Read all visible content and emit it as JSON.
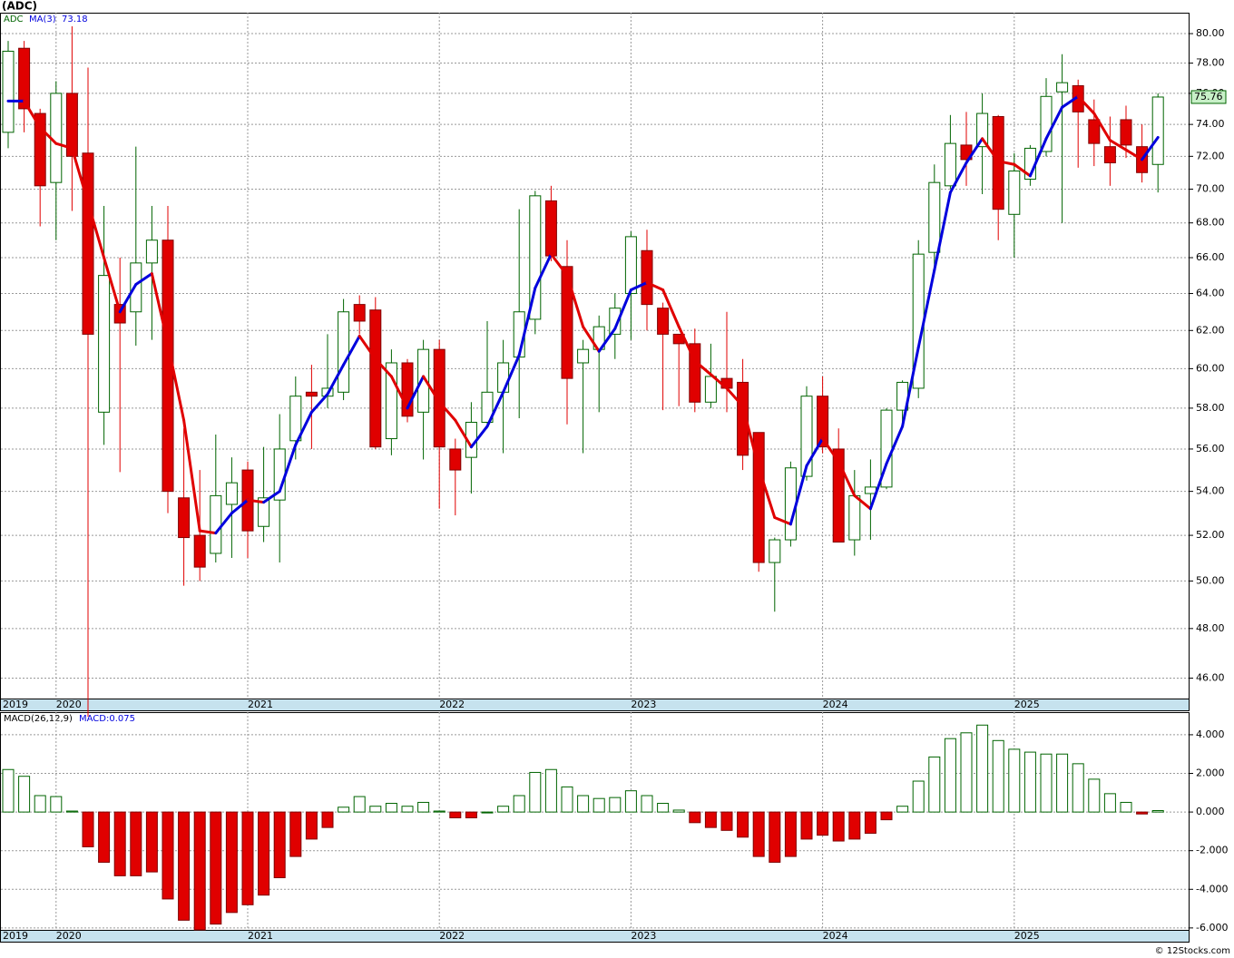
{
  "chart_data": [
    {
      "type": "candlestick",
      "title": "(ADC)",
      "symbol": "ADC",
      "ma_label": "MA(3)",
      "log_scale": true,
      "grid": true,
      "categories": [
        "2019",
        null,
        null,
        "2020",
        null,
        null,
        null,
        null,
        null,
        null,
        null,
        null,
        null,
        null,
        null,
        "2021",
        null,
        null,
        null,
        null,
        null,
        null,
        null,
        null,
        null,
        null,
        null,
        "2022",
        null,
        null,
        null,
        null,
        null,
        null,
        null,
        null,
        null,
        null,
        null,
        "2023",
        null,
        null,
        null,
        null,
        null,
        null,
        null,
        null,
        null,
        null,
        null,
        "2024",
        null,
        null,
        null,
        null,
        null,
        null,
        null,
        null,
        null,
        null,
        null,
        "2025",
        null,
        null,
        null,
        null,
        null,
        null,
        null,
        null,
        null
      ],
      "open": [
        73.5,
        79,
        74.7,
        70.4,
        76,
        72.2,
        57.8,
        63.4,
        63,
        65.7,
        67,
        53.7,
        52,
        51.2,
        53.4,
        55,
        52.4,
        53.6,
        56.4,
        58.8,
        58.6,
        58.8,
        63.4,
        63.1,
        56.5,
        60.3,
        57.8,
        61,
        56,
        55.6,
        57.3,
        58.8,
        60.6,
        62.6,
        69.3,
        65.5,
        60.3,
        61,
        61.8,
        64,
        66.4,
        63.2,
        61.8,
        61.3,
        58.3,
        59.5,
        59.3,
        56.8,
        50.8,
        51.8,
        54.7,
        58.6,
        56,
        51.8,
        53.9,
        54.2,
        57.9,
        59,
        66.3,
        70.2,
        72.7,
        72.6,
        74.5,
        68.5,
        70.6,
        72.3,
        76.1,
        76.5,
        74.3,
        72.6,
        74.3,
        72.6,
        71.5
      ],
      "high": [
        79.5,
        79.5,
        75,
        76.8,
        80.5,
        77.7,
        69,
        66,
        72.6,
        69,
        69,
        57,
        55,
        56.7,
        55.6,
        55.4,
        56.1,
        57.7,
        59.6,
        60.2,
        61.8,
        63.7,
        63.9,
        63.8,
        61,
        60.5,
        61.5,
        61.5,
        56.5,
        58.3,
        62.5,
        61.5,
        68.8,
        69.9,
        70.2,
        67,
        61.5,
        62.8,
        64,
        67.5,
        67.6,
        63.5,
        61.8,
        62.1,
        61.3,
        63,
        60.5,
        56.8,
        51.9,
        55.4,
        59.1,
        59.6,
        57,
        55,
        55.5,
        58,
        59.4,
        67,
        71.5,
        74.6,
        74.8,
        76,
        74.6,
        72.2,
        72.7,
        77,
        78.6,
        76.9,
        75.6,
        74.5,
        75.2,
        74,
        76
      ],
      "low": [
        72.5,
        73.5,
        67.8,
        67,
        68.7,
        44.5,
        56.2,
        54.9,
        61.2,
        61.5,
        53,
        49.8,
        50,
        50.8,
        51,
        51,
        51.7,
        50.8,
        55.5,
        56,
        58,
        58.4,
        61.8,
        56,
        55.7,
        57.3,
        55.5,
        53.2,
        52.9,
        53.9,
        57,
        55.8,
        57.5,
        61.8,
        65.8,
        57.2,
        55.8,
        57.8,
        60.5,
        61.5,
        62,
        57.9,
        58.1,
        57.8,
        58,
        57.8,
        55,
        50.4,
        48.7,
        51.5,
        54.5,
        55.8,
        51.7,
        51.1,
        51.8,
        54.1,
        57,
        58.5,
        65.5,
        70,
        70.2,
        69.7,
        67,
        66,
        70.2,
        72,
        68,
        71.3,
        71.4,
        70.2,
        71.9,
        70.4,
        69.8
      ],
      "close": [
        78.8,
        75,
        70.2,
        76,
        72,
        61.8,
        65,
        62.4,
        65.7,
        67,
        54,
        51.9,
        50.6,
        53.8,
        54.4,
        52.2,
        53.7,
        56,
        58.6,
        58.6,
        59,
        63,
        62.5,
        56.1,
        60.3,
        57.6,
        61,
        56.1,
        55,
        57.3,
        58.8,
        60.3,
        63,
        69.6,
        66.1,
        59.5,
        61,
        62.2,
        63.2,
        67.2,
        63.4,
        61.8,
        61.3,
        58.3,
        59.6,
        59,
        55.7,
        50.8,
        51.8,
        55.1,
        58.6,
        56.1,
        51.7,
        53.8,
        54.2,
        57.9,
        59.3,
        66.2,
        70.4,
        72.8,
        71.8,
        74.7,
        68.8,
        71.1,
        72.5,
        75.8,
        76.7,
        74.8,
        72.8,
        71.6,
        72.7,
        71,
        75.76
      ],
      "ma": [
        75.5,
        75.5,
        73.8,
        72.8,
        72.5,
        69.2,
        66,
        63,
        64.5,
        65.1,
        61.3,
        57.4,
        52.2,
        52.1,
        53,
        53.6,
        53.5,
        54,
        56.2,
        57.8,
        58.7,
        60.2,
        61.7,
        60.5,
        59.6,
        58,
        59.6,
        58.3,
        57.4,
        56.1,
        57.1,
        58.8,
        60.7,
        64.3,
        66.2,
        65,
        62.2,
        60.9,
        62.1,
        64.2,
        64.6,
        64.2,
        62.2,
        60.4,
        59.7,
        59,
        58.1,
        55.1,
        52.8,
        52.5,
        55.2,
        56.5,
        55.4,
        53.8,
        53.2,
        55.3,
        57.1,
        61.1,
        65.3,
        69.8,
        71.6,
        73.1,
        71.7,
        71.5,
        70.8,
        73.1,
        75.1,
        75.8,
        74.7,
        73,
        72.4,
        71.8,
        73.18
      ],
      "up_color": "#006400",
      "down_color": "#e00000",
      "ma_up_color": "#0000dd",
      "ma_down_color": "#e00000",
      "ylim": [
        45.2,
        81.45
      ],
      "yticks": [
        {
          "value": 46,
          "label": "46.00"
        },
        {
          "value": 48,
          "label": "48.00"
        },
        {
          "value": 50,
          "label": "50.00"
        },
        {
          "value": 52,
          "label": "52.00"
        },
        {
          "value": 54,
          "label": "54.00"
        },
        {
          "value": 56,
          "label": "56.00"
        },
        {
          "value": 58,
          "label": "58.00"
        },
        {
          "value": 60,
          "label": "60.00"
        },
        {
          "value": 62,
          "label": "62.00"
        },
        {
          "value": 64,
          "label": "64.00"
        },
        {
          "value": 66,
          "label": "66.00"
        },
        {
          "value": 68,
          "label": "68.00"
        },
        {
          "value": 70,
          "label": "70.00"
        },
        {
          "value": 72,
          "label": "72.00"
        },
        {
          "value": 74,
          "label": "74.00"
        },
        {
          "value": 76,
          "label": "76.00"
        },
        {
          "value": 78,
          "label": "78.00"
        },
        {
          "value": 80,
          "label": "80.00"
        }
      ],
      "footer": "© 12Stocks.com"
    },
    {
      "type": "bar",
      "title": "MACD(26,12,9)",
      "last_label": "MACD:0.075",
      "grid": true,
      "categories": [
        "2019",
        null,
        null,
        "2020",
        null,
        null,
        null,
        null,
        null,
        null,
        null,
        null,
        null,
        null,
        null,
        "2021",
        null,
        null,
        null,
        null,
        null,
        null,
        null,
        null,
        null,
        null,
        null,
        "2022",
        null,
        null,
        null,
        null,
        null,
        null,
        null,
        null,
        null,
        null,
        null,
        "2023",
        null,
        null,
        null,
        null,
        null,
        null,
        null,
        null,
        null,
        null,
        null,
        "2024",
        null,
        null,
        null,
        null,
        null,
        null,
        null,
        null,
        null,
        null,
        null,
        "2025",
        null,
        null,
        null,
        null,
        null,
        null,
        null,
        null,
        null
      ],
      "values": [
        2.2,
        1.85,
        0.85,
        0.8,
        0.05,
        -1.8,
        -2.6,
        -3.3,
        -3.3,
        -3.1,
        -4.5,
        -5.6,
        -6.1,
        -5.8,
        -5.2,
        -4.8,
        -4.3,
        -3.4,
        -2.3,
        -1.4,
        -0.8,
        0.25,
        0.8,
        0.3,
        0.45,
        0.3,
        0.5,
        0.05,
        -0.3,
        -0.3,
        0.0,
        0.3,
        0.85,
        2.05,
        2.2,
        1.3,
        0.85,
        0.7,
        0.75,
        1.1,
        0.85,
        0.45,
        0.1,
        -0.55,
        -0.8,
        -0.95,
        -1.3,
        -2.3,
        -2.6,
        -2.3,
        -1.4,
        -1.2,
        -1.5,
        -1.4,
        -1.1,
        -0.4,
        0.3,
        1.6,
        2.85,
        3.8,
        4.1,
        4.5,
        3.7,
        3.25,
        3.1,
        3.0,
        3.0,
        2.5,
        1.7,
        0.95,
        0.5,
        -0.1,
        0.075
      ],
      "pos_color": "#006400",
      "neg_color": "#e00000",
      "ylim": [
        -6.1,
        5.17
      ],
      "yticks": [
        {
          "value": 4,
          "label": "4.000"
        },
        {
          "value": 2,
          "label": "2.000"
        },
        {
          "value": 0,
          "label": "0.000"
        },
        {
          "value": -2,
          "label": "-2.000"
        },
        {
          "value": -4,
          "label": "-4.000"
        },
        {
          "value": -6,
          "label": "-6.000"
        }
      ]
    }
  ]
}
